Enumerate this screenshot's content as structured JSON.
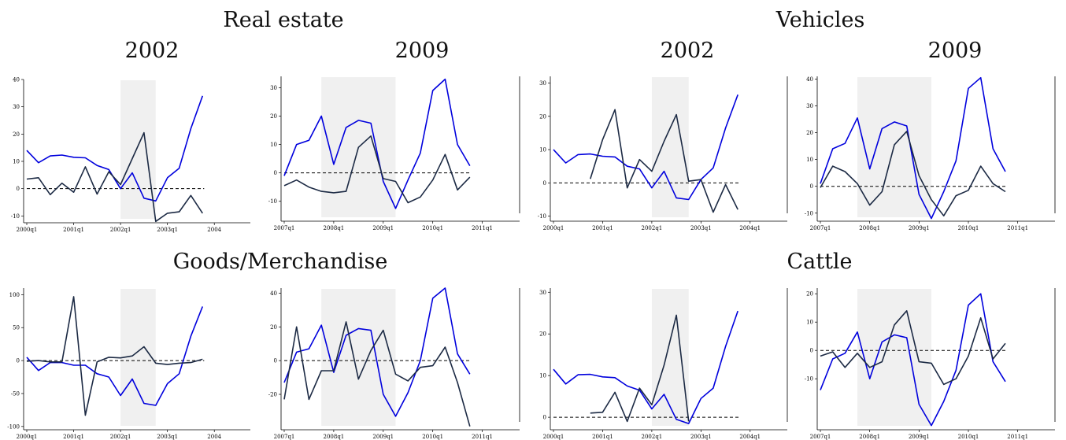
{
  "headings": {
    "real_estate": "Real estate",
    "vehicles": "Vehicles",
    "goods": "Goods/Merchandise",
    "cattle": "Cattle",
    "re_2002": "2002",
    "re_2009": "2009",
    "veh_2002": "2002",
    "veh_2009": "2009"
  },
  "colors": {
    "blue_series": "#0000dd",
    "dark_series": "#1c2a44",
    "shade": "#f0f0f0",
    "baseline": "#000000"
  },
  "chart_data": [
    {
      "type": "line",
      "id": "re2002",
      "x": [
        "2000q1",
        "2000q2",
        "2000q3",
        "2000q4",
        "2001q1",
        "2001q2",
        "2001q3",
        "2001q4",
        "2002q1",
        "2002q2",
        "2002q3",
        "2002q4",
        "2003q1",
        "2003q2",
        "2003q3",
        "2003q4"
      ],
      "xticks": [
        "2000q1",
        "2001q1",
        "2002q1",
        "2003q1",
        "2004"
      ],
      "yticks": [
        40,
        30,
        20,
        10,
        0,
        -10
      ],
      "ylim": [
        -12.5,
        40
      ],
      "shade": [
        "2002q1",
        "2002q4"
      ],
      "series": [
        {
          "color": "blue",
          "values": [
            14,
            9.5,
            12,
            12.3,
            11.5,
            11.3,
            8.5,
            7,
            0,
            5.8,
            -3.5,
            -4.5,
            4,
            7.5,
            22,
            34
          ]
        },
        {
          "color": "dark",
          "values": [
            3.5,
            4,
            -2.2,
            2,
            -1.3,
            8,
            -2,
            6.2,
            1.5,
            11,
            20.5,
            -12,
            -9,
            -8.5,
            -2.5,
            -9
          ]
        }
      ]
    },
    {
      "type": "line",
      "id": "re2009",
      "x": [
        "2007q1",
        "2007q2",
        "2007q3",
        "2007q4",
        "2008q1",
        "2008q2",
        "2008q3",
        "2008q4",
        "2009q1",
        "2009q2",
        "2009q3",
        "2009q4",
        "2010q1",
        "2010q2",
        "2010q3",
        "2010q4"
      ],
      "xticks": [
        "2007q1",
        "2008q1",
        "2009q1",
        "2010q1",
        "2011q1"
      ],
      "yticks": [
        30,
        20,
        10,
        0,
        -10
      ],
      "ylim": [
        -17,
        34
      ],
      "shade": [
        "2007q4",
        "2009q2"
      ],
      "series": [
        {
          "color": "blue",
          "values": [
            -1,
            10,
            11.5,
            20,
            3,
            16,
            18.5,
            17.5,
            -3,
            -12.5,
            -2.5,
            7,
            29,
            33,
            10,
            2.5
          ]
        },
        {
          "color": "dark",
          "values": [
            -4.5,
            -2.5,
            -5,
            -6.5,
            -7,
            -6.5,
            9,
            13,
            -2,
            -3,
            -10.5,
            -8.5,
            -2.5,
            6.5,
            -6,
            -1.5
          ]
        }
      ]
    },
    {
      "type": "line",
      "id": "veh2002",
      "x": [
        "2000q1",
        "2000q2",
        "2000q3",
        "2000q4",
        "2001q1",
        "2001q2",
        "2001q3",
        "2001q4",
        "2002q1",
        "2002q2",
        "2002q3",
        "2002q4",
        "2003q1",
        "2003q2",
        "2003q3",
        "2003q4"
      ],
      "xticks": [
        "2000q1",
        "2001q1",
        "2002q1",
        "2003q1",
        "2004q1"
      ],
      "yticks": [
        30,
        20,
        10,
        0,
        -10
      ],
      "ylim": [
        -11.5,
        32
      ],
      "shade": [
        "2002q1",
        "2002q4"
      ],
      "series": [
        {
          "color": "blue",
          "values": [
            10,
            6,
            8.5,
            8.7,
            8,
            7.8,
            5,
            4.2,
            -1.5,
            3.5,
            -4.5,
            -5,
            1,
            4.5,
            16.5,
            26.5
          ]
        },
        {
          "color": "dark",
          "values": [
            null,
            null,
            null,
            1.2,
            13,
            22,
            -1.5,
            7,
            3.5,
            12.5,
            20.5,
            0.5,
            1,
            -8.8,
            -0.5,
            -8
          ]
        }
      ]
    },
    {
      "type": "line",
      "id": "veh2009",
      "x": [
        "2007q1",
        "2007q2",
        "2007q3",
        "2007q4",
        "2008q1",
        "2008q2",
        "2008q3",
        "2008q4",
        "2009q1",
        "2009q2",
        "2009q3",
        "2009q4",
        "2010q1",
        "2010q2",
        "2010q3",
        "2010q4"
      ],
      "xticks": [
        "2007q1",
        "2008q1",
        "2009q1",
        "2010q1",
        "2011q1"
      ],
      "yticks": [
        40,
        30,
        20,
        10,
        0,
        -10
      ],
      "ylim": [
        -13,
        41
      ],
      "shade": [
        "2007q4",
        "2009q2"
      ],
      "series": [
        {
          "color": "blue",
          "values": [
            1,
            14,
            16,
            25.5,
            6.5,
            21.5,
            24,
            22.5,
            -3,
            -12,
            -2,
            9.5,
            36.5,
            40.5,
            14,
            5.5
          ]
        },
        {
          "color": "dark",
          "values": [
            -0.5,
            7.5,
            5.5,
            1,
            -7,
            -2,
            15.5,
            20.5,
            4,
            -5,
            -11,
            -3.5,
            -1.5,
            7.5,
            1,
            -2
          ]
        }
      ]
    },
    {
      "type": "line",
      "id": "goods2002",
      "x": [
        "2000q1",
        "2000q2",
        "2000q3",
        "2000q4",
        "2001q1",
        "2001q2",
        "2001q3",
        "2001q4",
        "2002q1",
        "2002q2",
        "2002q3",
        "2002q4",
        "2003q1",
        "2003q2",
        "2003q3",
        "2003q4"
      ],
      "xticks": [
        "2000q1",
        "2001q1",
        "2002q1",
        "2003q1",
        "2004"
      ],
      "yticks": [
        100,
        50,
        0,
        -50,
        -100
      ],
      "ylim": [
        -105,
        110
      ],
      "shade": [
        "2002q1",
        "2002q4"
      ],
      "series": [
        {
          "color": "blue",
          "values": [
            5,
            -15,
            -3,
            -3,
            -7,
            -7,
            -20,
            -25,
            -53,
            -28,
            -65,
            -68,
            -35,
            -20,
            37,
            82
          ]
        },
        {
          "color": "dark",
          "values": [
            -1,
            0,
            -2,
            -2,
            97,
            -83,
            -2,
            5,
            4,
            7,
            21,
            -4,
            -6,
            -4,
            -3,
            2
          ]
        }
      ]
    },
    {
      "type": "line",
      "id": "goods2009",
      "x": [
        "2007q1",
        "2007q2",
        "2007q3",
        "2007q4",
        "2008q1",
        "2008q2",
        "2008q3",
        "2008q4",
        "2009q1",
        "2009q2",
        "2009q3",
        "2009q4",
        "2010q1",
        "2010q2",
        "2010q3",
        "2010q4"
      ],
      "xticks": [
        "2007q1",
        "2008q1",
        "2009q1",
        "2010q1",
        "2011q1"
      ],
      "yticks": [
        40,
        20,
        0,
        -20
      ],
      "ylim": [
        -41,
        43
      ],
      "shade": [
        "2007q4",
        "2009q2"
      ],
      "series": [
        {
          "color": "blue",
          "values": [
            -13,
            5,
            7,
            21,
            -7,
            15,
            19,
            18,
            -20,
            -33,
            -19,
            0,
            37,
            43,
            4,
            -8
          ]
        },
        {
          "color": "dark",
          "values": [
            -23,
            20,
            -23,
            -6,
            -6,
            23,
            -11,
            6,
            18,
            -8,
            -12,
            -4,
            -3,
            8,
            -13,
            -39
          ]
        }
      ]
    },
    {
      "type": "line",
      "id": "cattle2002",
      "x": [
        "2000q1",
        "2000q2",
        "2000q3",
        "2000q4",
        "2001q1",
        "2001q2",
        "2001q3",
        "2001q4",
        "2002q1",
        "2002q2",
        "2002q3",
        "2002q4",
        "2003q1",
        "2003q2",
        "2003q3",
        "2003q4"
      ],
      "xticks": [
        "2000q1",
        "2001q1",
        "2002q1",
        "2003q1",
        "2004q1"
      ],
      "yticks": [
        30,
        20,
        10,
        0
      ],
      "ylim": [
        -3,
        31
      ],
      "shade": [
        "2002q1",
        "2002q4"
      ],
      "series": [
        {
          "color": "blue",
          "values": [
            11.5,
            8,
            10.2,
            10.3,
            9.7,
            9.5,
            7.5,
            6.5,
            2,
            5.5,
            -0.5,
            -1.5,
            4.5,
            7,
            17,
            25.5
          ]
        },
        {
          "color": "dark",
          "values": [
            null,
            null,
            null,
            1,
            1.2,
            6,
            -1,
            7,
            3,
            12.5,
            24.5,
            -1,
            null,
            null,
            null,
            null
          ]
        },
        {
          "color": "dark",
          "values": [
            null,
            null,
            null,
            null,
            null,
            null,
            null,
            null,
            null,
            null,
            null,
            -1.2,
            null,
            null,
            null,
            null
          ]
        }
      ]
    },
    {
      "type": "line",
      "id": "cattle2009",
      "x": [
        "2007q1",
        "2007q2",
        "2007q3",
        "2007q4",
        "2008q1",
        "2008q2",
        "2008q3",
        "2008q4",
        "2009q1",
        "2009q2",
        "2009q3",
        "2009q4",
        "2010q1",
        "2010q2",
        "2010q3",
        "2010q4"
      ],
      "xticks": [
        "2007q1",
        "2008q1",
        "2009q1",
        "2010q1",
        "2011q1"
      ],
      "yticks": [
        20,
        10,
        0,
        -10
      ],
      "ylim": [
        -28,
        22
      ],
      "shade": [
        "2007q4",
        "2009q2"
      ],
      "series": [
        {
          "color": "blue",
          "values": [
            -14,
            -3,
            -1,
            6.5,
            -10,
            3,
            5.5,
            4.5,
            -19,
            -26.5,
            -18,
            -7,
            16,
            20,
            -4,
            -11
          ]
        },
        {
          "color": "dark",
          "values": [
            -2,
            -0.5,
            -6,
            -1,
            -6,
            -4,
            9,
            14,
            -4,
            -4.5,
            -12,
            -10,
            -2,
            11.5,
            -3,
            2.5
          ]
        }
      ]
    }
  ]
}
